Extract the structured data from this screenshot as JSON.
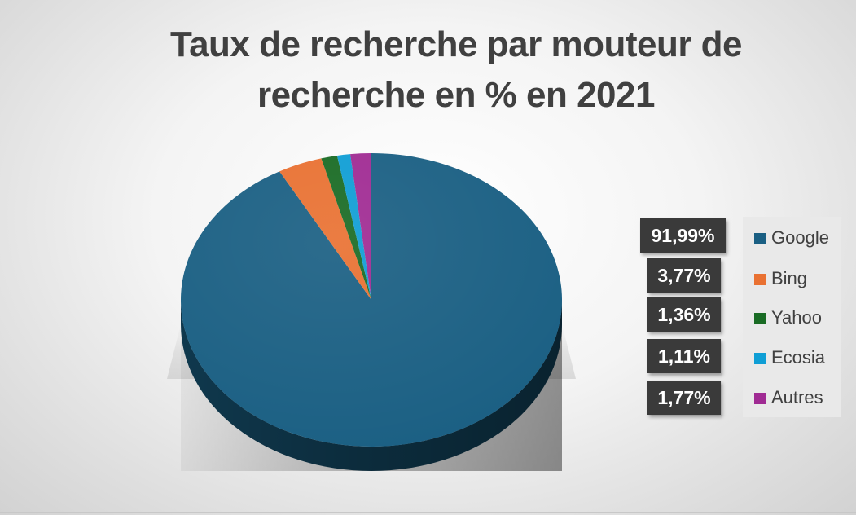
{
  "chart_data": {
    "type": "pie",
    "title_lines": [
      "Taux de recherche par mouteur de",
      "recherche en % en 2021"
    ],
    "categories": [
      "Google",
      "Bing",
      "Yahoo",
      "Ecosia",
      "Autres"
    ],
    "values": [
      91.99,
      3.77,
      1.36,
      1.11,
      1.77
    ],
    "labels": [
      "91,99%",
      "3,77%",
      "1,36%",
      "1,11%",
      "1,77%"
    ],
    "colors": [
      "#1a5f83",
      "#e97132",
      "#196b24",
      "#0f9ed5",
      "#a02b93"
    ],
    "legend_position": "right",
    "style": "3d"
  }
}
